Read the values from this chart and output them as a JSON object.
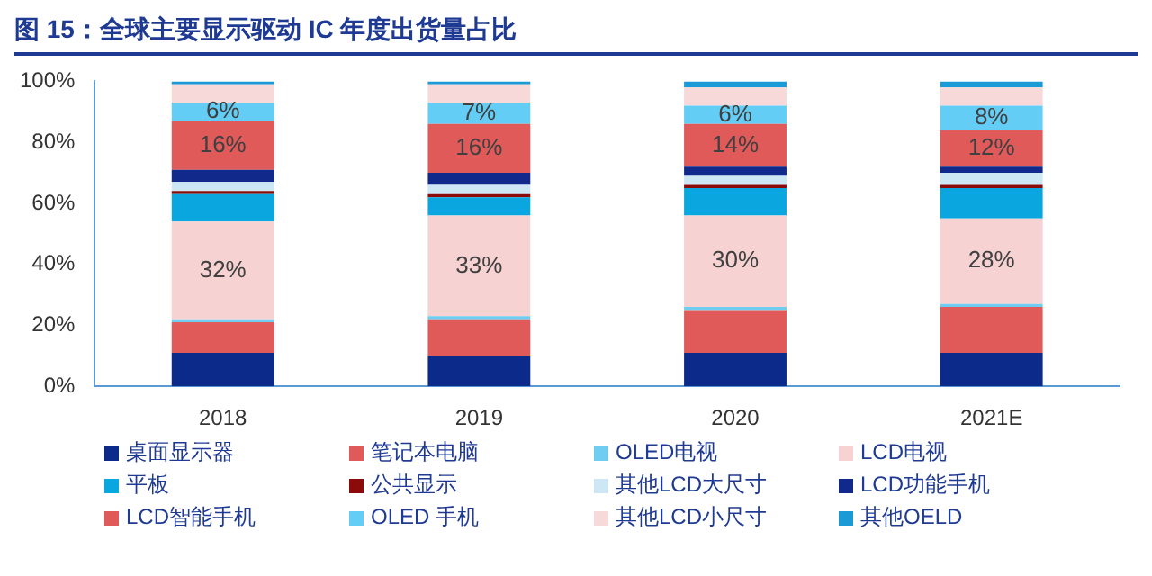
{
  "chart_data": {
    "type": "bar",
    "title": "图 15：全球主要显示驱动 IC 年度出货量占比",
    "categories": [
      "2018",
      "2019",
      "2020",
      "2021E"
    ],
    "stacked": true,
    "legend": "bottom",
    "grid": false,
    "ylim": [
      0,
      100
    ],
    "yticks": [
      {
        "value": 0,
        "label": "0%"
      },
      {
        "value": 20,
        "label": "20%"
      },
      {
        "value": 40,
        "label": "40%"
      },
      {
        "value": 60,
        "label": "60%"
      },
      {
        "value": 80,
        "label": "80%"
      },
      {
        "value": 100,
        "label": "100%"
      }
    ],
    "series": [
      {
        "name": "桌面显示器",
        "color": "#0b2a8a",
        "values": [
          11,
          10,
          11,
          11
        ]
      },
      {
        "name": "笔记本电脑",
        "color": "#e05a5a",
        "values": [
          10,
          12,
          14,
          15
        ]
      },
      {
        "name": "OLED电视",
        "color": "#6fcdf2",
        "values": [
          1,
          1,
          1,
          1
        ]
      },
      {
        "name": "LCD电视",
        "color": "#f6d2d2",
        "values": [
          32,
          33,
          30,
          28
        ],
        "value_labels": [
          "32%",
          "33%",
          "30%",
          "28%"
        ]
      },
      {
        "name": "平板",
        "color": "#0aa6e0",
        "values": [
          9,
          6,
          9,
          10
        ]
      },
      {
        "name": "公共显示",
        "color": "#8b0a0a",
        "values": [
          1,
          1,
          1,
          1
        ]
      },
      {
        "name": "其他LCD大尺寸",
        "color": "#cde8f4",
        "values": [
          3,
          3,
          3,
          4
        ]
      },
      {
        "name": "LCD功能手机",
        "color": "#10298a",
        "values": [
          4,
          4,
          3,
          2
        ]
      },
      {
        "name": "LCD智能手机",
        "color": "#e05a5a",
        "values": [
          16,
          16,
          14,
          12
        ],
        "value_labels": [
          "16%",
          "16%",
          "14%",
          "12%"
        ]
      },
      {
        "name": "OLED 手机",
        "color": "#63cdf5",
        "values": [
          6,
          7,
          6,
          8
        ],
        "value_labels": [
          "6%",
          "7%",
          "6%",
          "8%"
        ]
      },
      {
        "name": "其他LCD小尺寸",
        "color": "#f8d9d9",
        "values": [
          6,
          6,
          6,
          6
        ]
      },
      {
        "name": "其他OELD",
        "color": "#1c9ad6",
        "values": [
          1,
          1,
          2,
          2
        ]
      }
    ]
  }
}
